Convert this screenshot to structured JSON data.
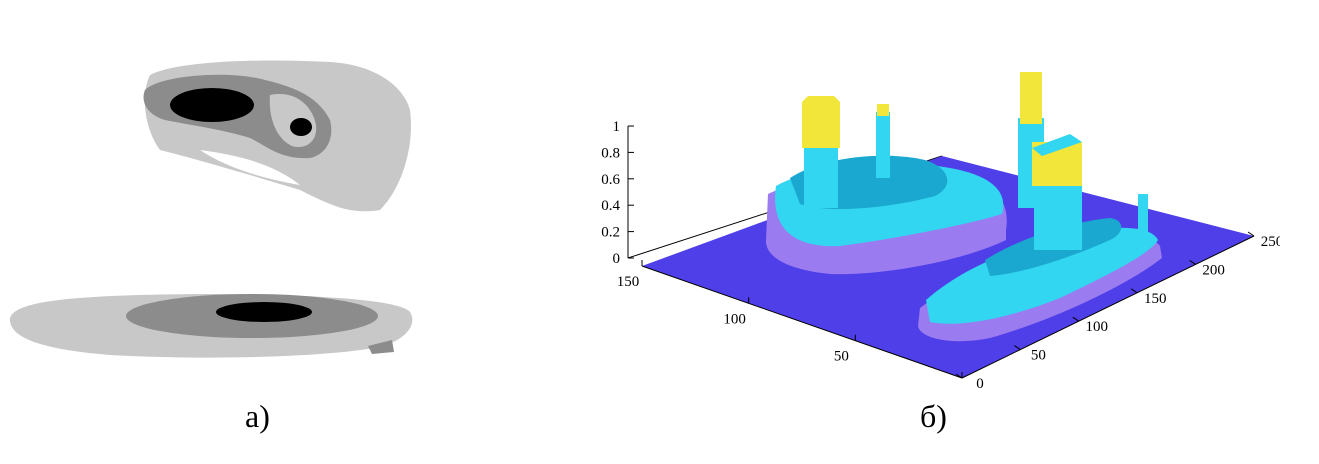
{
  "captions": {
    "a": "а)",
    "b": "б)"
  },
  "colors": {
    "light_gray": "#c8c8c8",
    "mid_gray": "#8c8c8c",
    "black": "#000000",
    "floor": "#4f3fe8",
    "cyan": "#33d6f0",
    "cyan_dark": "#1aa8d0",
    "violet": "#9a7cf0",
    "yellow": "#f2e63a"
  },
  "chart_data": {
    "type": "surface",
    "title": "",
    "z_ticks": [
      "0",
      "0.2",
      "0.4",
      "0.6",
      "0.8",
      "1"
    ],
    "y_ticks": [
      "0",
      "50",
      "100",
      "150"
    ],
    "x_ticks": [
      "0",
      "50",
      "100",
      "150",
      "200",
      "250"
    ],
    "zlim": [
      0,
      1
    ],
    "ylim": [
      0,
      150
    ],
    "xlim": [
      0,
      250
    ],
    "grid": false
  }
}
